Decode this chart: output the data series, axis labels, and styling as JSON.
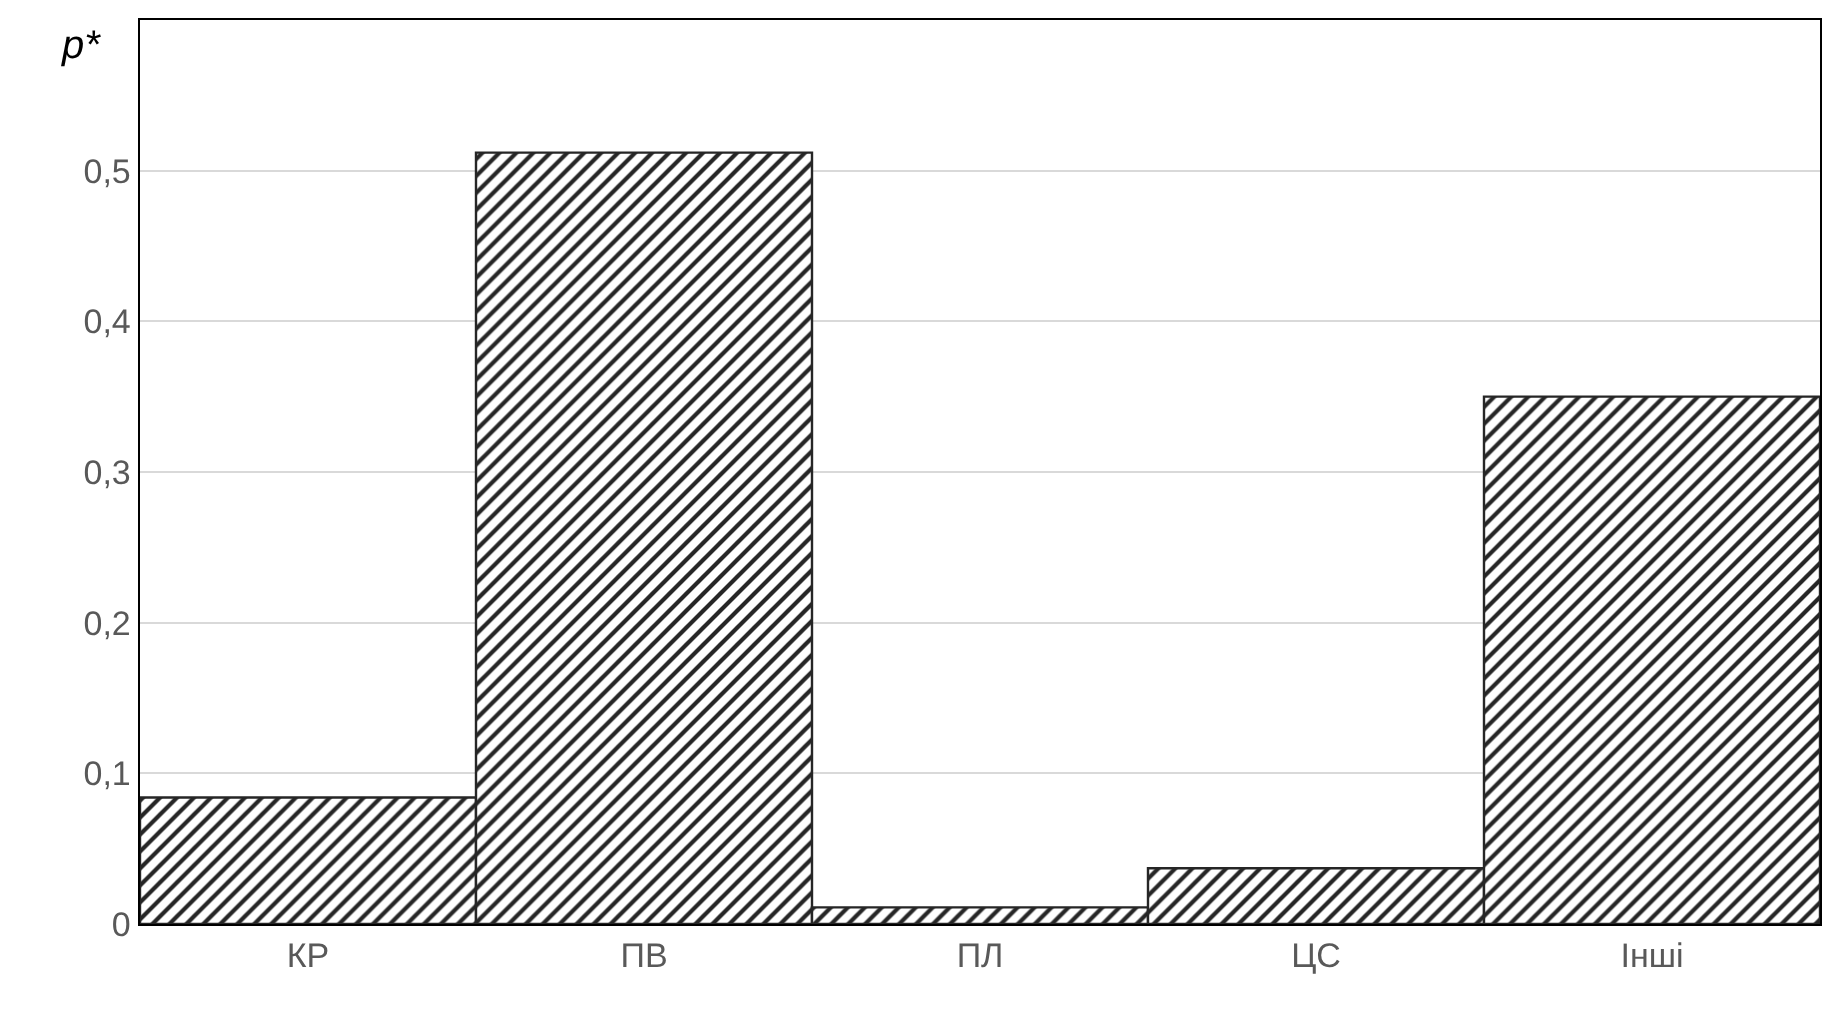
{
  "chart_data": {
    "type": "bar",
    "ylabel": "p*",
    "categories": [
      "КР",
      "ПВ",
      "ПЛ",
      "ЦС",
      "Інші"
    ],
    "values": [
      0.084,
      0.512,
      0.011,
      0.037,
      0.35
    ],
    "color": "#262626",
    "ylim": [
      0,
      0.6
    ],
    "yticks": [
      0,
      {
        "value": 0.1,
        "label": "0,1"
      },
      {
        "value": 0.2,
        "label": "0,2"
      },
      {
        "value": 0.3,
        "label": "0,3"
      },
      {
        "value": 0.4,
        "label": "0,4"
      },
      {
        "value": 0.5,
        "label": "0,5"
      }
    ],
    "grid": "y",
    "legend": false
  }
}
